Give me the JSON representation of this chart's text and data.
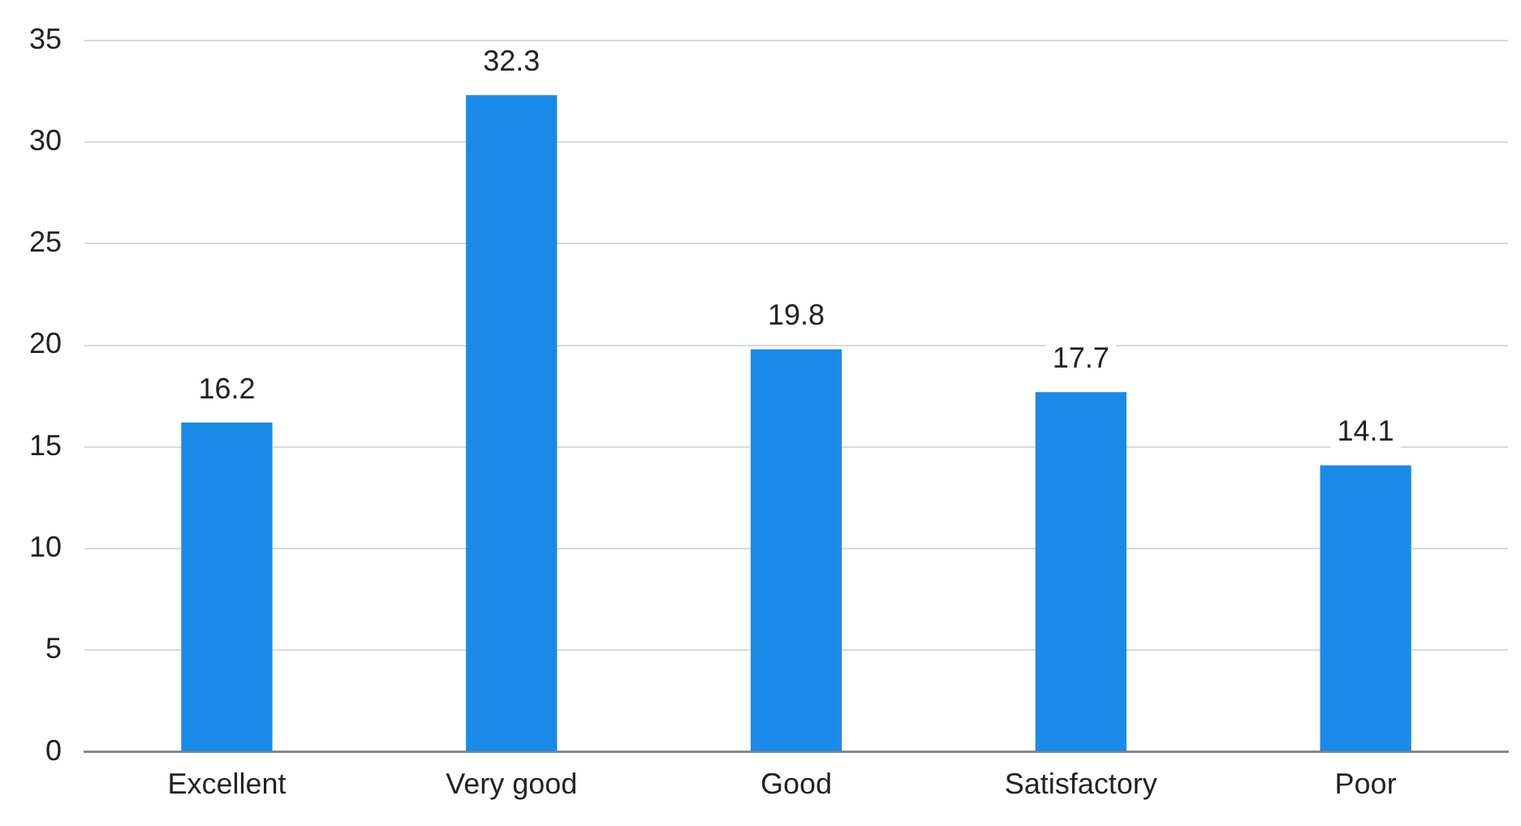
{
  "chart_data": {
    "type": "bar",
    "categories": [
      "Excellent",
      "Very good",
      "Good",
      "Satisfactory",
      "Poor"
    ],
    "values": [
      16.2,
      32.3,
      19.8,
      17.7,
      14.1
    ],
    "color": "#1a8ae8",
    "ylim": [
      0,
      35
    ],
    "yticks": [
      0,
      5,
      10,
      15,
      20,
      25,
      30,
      35
    ],
    "grid": "y",
    "data_labels": true
  }
}
